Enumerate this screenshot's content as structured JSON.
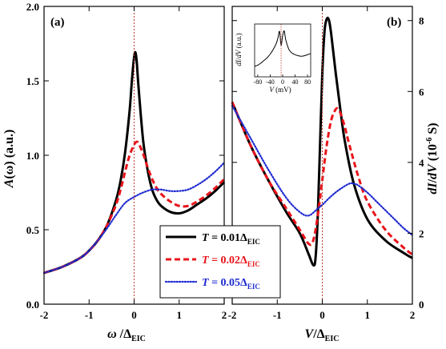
{
  "chart_data": [
    {
      "type": "line",
      "panel_label": "(a)",
      "ylabel": "A(ω) (a.u.)",
      "xlabel": "ω /Δ_EIC",
      "xlim": [
        -2,
        2
      ],
      "ylim": [
        0,
        2.0
      ],
      "xticks": [
        "-2",
        "-1",
        "0",
        "1",
        "2"
      ],
      "yticks": [
        "0.0",
        "0.5",
        "1.0",
        "1.5",
        "2.0"
      ],
      "vertical_reference_line_at": 0,
      "series": [
        {
          "name": "T = 0.01Δ_EIC",
          "color": "#000000",
          "style": "solid",
          "x": [
            -2,
            -1.6,
            -1.2,
            -1.0,
            -0.8,
            -0.6,
            -0.4,
            -0.3,
            -0.2,
            -0.1,
            -0.05,
            0.0,
            0.03,
            0.06,
            0.1,
            0.2,
            0.3,
            0.4,
            0.5,
            0.6,
            0.8,
            1.0,
            1.2,
            1.4,
            1.6,
            1.8,
            2.0
          ],
          "y": [
            0.21,
            0.25,
            0.31,
            0.36,
            0.43,
            0.53,
            0.7,
            0.83,
            1.02,
            1.3,
            1.5,
            1.66,
            1.69,
            1.62,
            1.45,
            1.1,
            0.9,
            0.77,
            0.7,
            0.66,
            0.62,
            0.61,
            0.63,
            0.67,
            0.71,
            0.76,
            0.82
          ]
        },
        {
          "name": "T = 0.02Δ_EIC",
          "color": "#e8141b",
          "style": "dashed",
          "x": [
            -2,
            -1.6,
            -1.2,
            -1.0,
            -0.8,
            -0.6,
            -0.4,
            -0.3,
            -0.2,
            -0.1,
            0.0,
            0.05,
            0.1,
            0.2,
            0.3,
            0.4,
            0.5,
            0.6,
            0.8,
            1.0,
            1.2,
            1.4,
            1.6,
            1.8,
            2.0
          ],
          "y": [
            0.21,
            0.25,
            0.31,
            0.36,
            0.43,
            0.53,
            0.67,
            0.77,
            0.89,
            1.0,
            1.07,
            1.09,
            1.08,
            1.01,
            0.92,
            0.84,
            0.78,
            0.74,
            0.69,
            0.66,
            0.66,
            0.69,
            0.73,
            0.78,
            0.84
          ]
        },
        {
          "name": "T = 0.05Δ_EIC",
          "color": "#1f2bd0",
          "style": "dotted-markers",
          "x": [
            -2,
            -1.6,
            -1.2,
            -1.0,
            -0.8,
            -0.6,
            -0.4,
            -0.2,
            0.0,
            0.2,
            0.4,
            0.5,
            0.6,
            0.8,
            1.0,
            1.2,
            1.4,
            1.6,
            1.8,
            2.0
          ],
          "y": [
            0.21,
            0.25,
            0.31,
            0.36,
            0.43,
            0.51,
            0.6,
            0.68,
            0.72,
            0.75,
            0.77,
            0.77,
            0.77,
            0.76,
            0.76,
            0.77,
            0.8,
            0.84,
            0.89,
            0.95
          ]
        }
      ]
    },
    {
      "type": "line",
      "panel_label": "(b)",
      "ylabel": "dI/dV (10^-6 S)",
      "xlabel": "V/Δ_EIC",
      "xlim": [
        -2,
        2
      ],
      "ylim": [
        0,
        8.4
      ],
      "xticks": [
        "-2",
        "-1",
        "0",
        "1",
        "2"
      ],
      "yticks": [
        "0",
        "2",
        "4",
        "6",
        "8"
      ],
      "vertical_reference_line_at": 0,
      "series": [
        {
          "name": "T = 0.01Δ_EIC",
          "color": "#000000",
          "style": "solid",
          "x": [
            -2,
            -1.6,
            -1.2,
            -0.8,
            -0.5,
            -0.3,
            -0.2,
            -0.15,
            -0.1,
            -0.05,
            0.0,
            0.05,
            0.1,
            0.15,
            0.2,
            0.3,
            0.4,
            0.5,
            0.7,
            1.0,
            1.4,
            1.8,
            2.0
          ],
          "y": [
            5.7,
            4.5,
            3.5,
            2.6,
            2.0,
            1.4,
            1.1,
            1.3,
            2.5,
            4.5,
            6.5,
            7.7,
            8.05,
            8.0,
            7.6,
            6.5,
            5.5,
            4.6,
            3.4,
            2.4,
            1.8,
            1.45,
            1.3
          ]
        },
        {
          "name": "T = 0.02Δ_EIC",
          "color": "#e8141b",
          "style": "dashed",
          "x": [
            -2,
            -1.6,
            -1.2,
            -0.8,
            -0.5,
            -0.3,
            -0.2,
            -0.1,
            0.0,
            0.1,
            0.2,
            0.3,
            0.35,
            0.4,
            0.5,
            0.6,
            0.8,
            1.0,
            1.4,
            1.8,
            2.0
          ],
          "y": [
            5.7,
            4.5,
            3.5,
            2.7,
            2.1,
            1.7,
            1.8,
            2.5,
            3.5,
            4.5,
            5.2,
            5.5,
            5.5,
            5.4,
            5.0,
            4.5,
            3.6,
            2.9,
            2.1,
            1.6,
            1.4
          ]
        },
        {
          "name": "T = 0.05Δ_EIC",
          "color": "#1f2bd0",
          "style": "dotted-markers",
          "x": [
            -2,
            -1.6,
            -1.2,
            -0.8,
            -0.5,
            -0.3,
            -0.1,
            0.0,
            0.2,
            0.4,
            0.6,
            0.7,
            0.8,
            1.0,
            1.2,
            1.4,
            1.6,
            1.8,
            2.0
          ],
          "y": [
            5.6,
            4.7,
            3.8,
            3.0,
            2.6,
            2.5,
            2.7,
            2.8,
            3.05,
            3.25,
            3.4,
            3.4,
            3.35,
            3.15,
            2.9,
            2.65,
            2.4,
            2.15,
            1.95
          ]
        }
      ]
    },
    {
      "type": "line",
      "role": "inset",
      "ylabel": "dI/dV (a.u.)",
      "xlabel": "V (mV)",
      "xlim": [
        -90,
        90
      ],
      "xticks": [
        "-80",
        "-40",
        "0",
        "40",
        "80"
      ],
      "vertical_reference_line_at": -5,
      "series": [
        {
          "color": "#000000",
          "x": [
            -90,
            -80,
            -70,
            -60,
            -50,
            -40,
            -30,
            -20,
            -15,
            -10,
            -5,
            0,
            5,
            10,
            20,
            30,
            40,
            50,
            60,
            70,
            80,
            90
          ],
          "y": [
            0.2,
            0.22,
            0.26,
            0.31,
            0.36,
            0.43,
            0.52,
            0.64,
            0.74,
            0.86,
            0.6,
            0.78,
            0.87,
            0.7,
            0.52,
            0.45,
            0.42,
            0.4,
            0.39,
            0.4,
            0.42,
            0.44
          ]
        }
      ]
    }
  ],
  "legend": {
    "placement": "center-bottom",
    "entries": [
      {
        "label": "T = 0.01Δ_EIC",
        "color": "#000000"
      },
      {
        "label": "T = 0.02Δ_EIC",
        "color": "#e8141b"
      },
      {
        "label": "T = 0.05Δ_EIC",
        "color": "#1f2bd0"
      }
    ]
  }
}
